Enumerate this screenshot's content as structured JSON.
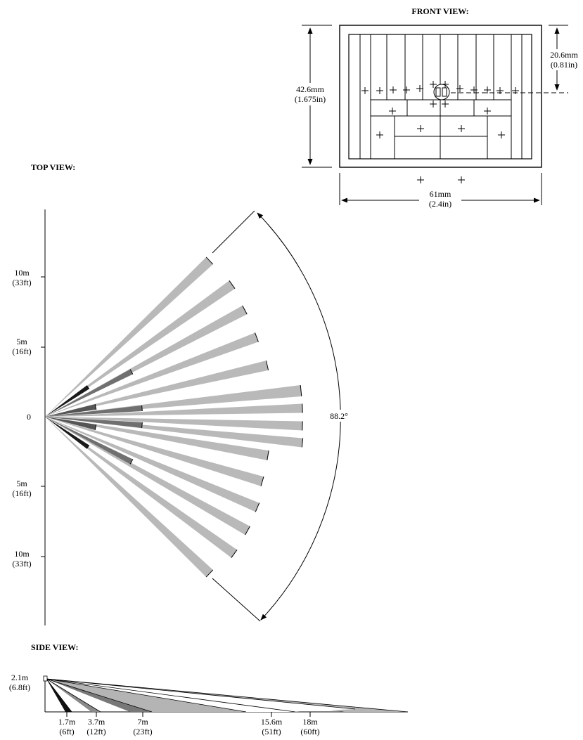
{
  "front_view": {
    "title": "FRONT VIEW:",
    "height_mm": "42.6mm",
    "height_in": "(1.675in)",
    "offset_mm": "20.6mm",
    "offset_in": "(0.81in)",
    "width_mm": "61mm",
    "width_in": "(2.4in)"
  },
  "top_view": {
    "title": "TOP VIEW:",
    "angle": "88.2°",
    "y_ticks": [
      {
        "m": "10m",
        "ft": "(33ft)"
      },
      {
        "m": "5m",
        "ft": "(16ft)"
      },
      {
        "m": "0",
        "ft": ""
      },
      {
        "m": "5m",
        "ft": "(16ft)"
      },
      {
        "m": "10m",
        "ft": "(33ft)"
      }
    ]
  },
  "side_view": {
    "title": "SIDE VIEW:",
    "mount_height_m": "2.1m",
    "mount_height_ft": "(6.8ft)",
    "distances": [
      {
        "m": "1.7m",
        "ft": "(6ft)"
      },
      {
        "m": "3.7m",
        "ft": "(12ft)"
      },
      {
        "m": "7m",
        "ft": "(23ft)"
      },
      {
        "m": "15.6m",
        "ft": "(51ft)"
      },
      {
        "m": "18m",
        "ft": "(60ft)"
      }
    ]
  }
}
